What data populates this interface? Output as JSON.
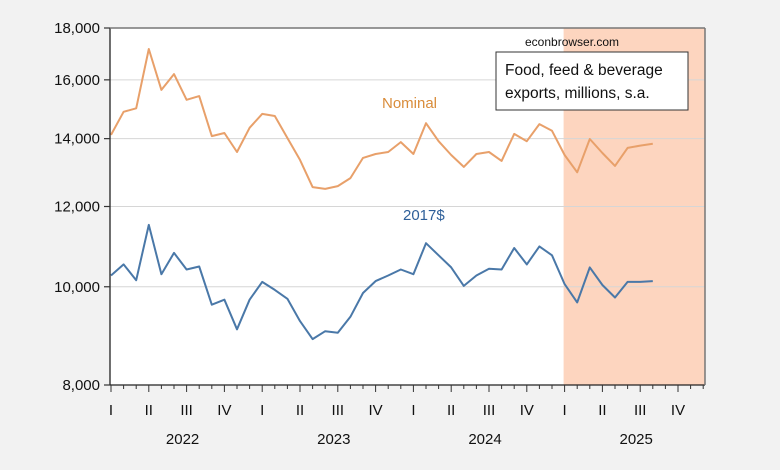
{
  "chart_data": {
    "type": "line",
    "title": "",
    "xlabel": "",
    "ylabel": "",
    "yscale": "log",
    "ylim": [
      8000,
      18000
    ],
    "yticks": [
      8000,
      10000,
      12000,
      14000,
      16000,
      18000
    ],
    "ytick_labels": [
      "8,000",
      "10,000",
      "12,000",
      "14,000",
      "16,000",
      "18,000"
    ],
    "grid": true,
    "x_start": "2022-01",
    "x_end": "2025-12",
    "quarter_labels": [
      "I",
      "II",
      "III",
      "IV"
    ],
    "years": [
      "2022",
      "2023",
      "2024",
      "2025"
    ],
    "shaded_region": {
      "from": "2025-01",
      "to": "2025-12",
      "color": "#fdd5bf"
    },
    "annotation_source": "econbrowser.com",
    "annotation_box": [
      "Food, feed & beverage",
      "exports, millions, s.a."
    ],
    "x": [
      "2022-01",
      "2022-02",
      "2022-03",
      "2022-04",
      "2022-05",
      "2022-06",
      "2022-07",
      "2022-08",
      "2022-09",
      "2022-10",
      "2022-11",
      "2022-12",
      "2023-01",
      "2023-02",
      "2023-03",
      "2023-04",
      "2023-05",
      "2023-06",
      "2023-07",
      "2023-08",
      "2023-09",
      "2023-10",
      "2023-11",
      "2023-12",
      "2024-01",
      "2024-02",
      "2024-03",
      "2024-04",
      "2024-05",
      "2024-06",
      "2024-07",
      "2024-08",
      "2024-09",
      "2024-10",
      "2024-11",
      "2024-12",
      "2025-01",
      "2025-02",
      "2025-03",
      "2025-04",
      "2025-05",
      "2025-06",
      "2025-07",
      "2025-08"
    ],
    "series": [
      {
        "name": "Nominal",
        "color": "#e8a06a",
        "values": [
          14120,
          14880,
          15000,
          17160,
          15640,
          16210,
          15290,
          15420,
          14080,
          14180,
          13580,
          14350,
          14810,
          14740,
          14020,
          13340,
          12540,
          12490,
          12570,
          12800,
          13400,
          13520,
          13580,
          13890,
          13520,
          14500,
          13920,
          13490,
          13130,
          13520,
          13580,
          13310,
          14150,
          13920,
          14470,
          14250,
          13490,
          12970,
          13990,
          13550,
          13160,
          13710,
          13780,
          13840
        ]
      },
      {
        "name": "2017$",
        "color": "#4a78a8",
        "values": [
          10260,
          10520,
          10150,
          11510,
          10290,
          10800,
          10400,
          10470,
          9600,
          9710,
          9080,
          9710,
          10110,
          9930,
          9730,
          9250,
          8880,
          9040,
          9010,
          9340,
          9860,
          10130,
          10260,
          10400,
          10290,
          11040,
          10740,
          10450,
          10020,
          10260,
          10420,
          10400,
          10920,
          10520,
          10960,
          10740,
          10060,
          9650,
          10450,
          10040,
          9760,
          10110,
          10110,
          10130
        ]
      }
    ]
  }
}
